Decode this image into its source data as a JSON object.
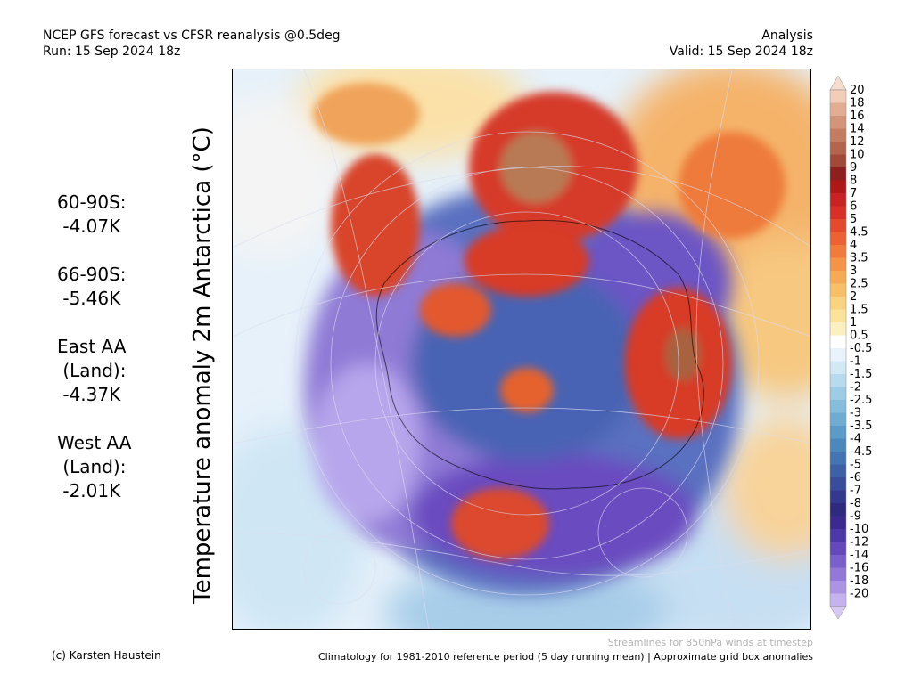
{
  "header": {
    "title_line1": "NCEP GFS forecast vs CFSR reanalysis @0.5deg",
    "title_line2": "Run: 15 Sep 2024 18z",
    "right_line1": "Analysis",
    "right_line2": "Valid: 15 Sep 2024 18z"
  },
  "map": {
    "ylabel": "Temperature anomaly 2m Antarctica (°C)"
  },
  "stats": [
    {
      "lines": [
        "60-90S:",
        " -4.07K"
      ]
    },
    {
      "lines": [
        "66-90S:",
        " -5.46K"
      ]
    },
    {
      "lines": [
        "East AA",
        " (Land):",
        " -4.37K"
      ]
    },
    {
      "lines": [
        "West AA",
        " (Land):",
        " -2.01K"
      ]
    }
  ],
  "colorbar": {
    "levels": [
      "20",
      "18",
      "16",
      "14",
      "12",
      "10",
      "9",
      "8",
      "7",
      "6",
      "5",
      "4.5",
      "4",
      "3.5",
      "3",
      "2.5",
      "2",
      "1.5",
      "1",
      "0.5",
      "-0.5",
      "-1",
      "-1.5",
      "-2",
      "-2.5",
      "-3",
      "-3.5",
      "-4",
      "-4.5",
      "-5",
      "-6",
      "-7",
      "-8",
      "-9",
      "-10",
      "-12",
      "-14",
      "-16",
      "-18",
      "-20"
    ],
    "colors": [
      "#f3cdb8",
      "#e2ad92",
      "#d3957a",
      "#c37d63",
      "#b3654d",
      "#a14a3a",
      "#8e1f1f",
      "#b01818",
      "#c82222",
      "#d83028",
      "#e34a2e",
      "#ec6234",
      "#f07b3d",
      "#f39449",
      "#f5aa56",
      "#f7c068",
      "#f9d37f",
      "#fbe39b",
      "#fdf0c0",
      "#ffffff",
      "#e8f3fb",
      "#d2e8f5",
      "#b8daee",
      "#9ecbe5",
      "#87bddc",
      "#70acd2",
      "#5c9bc8",
      "#4d88bd",
      "#4475b2",
      "#3e61a6",
      "#3a4d9a",
      "#35398d",
      "#302a7f",
      "#3d2a8e",
      "#4e37a6",
      "#6548ba",
      "#7b5fcb",
      "#9478d8",
      "#ad94e3",
      "#c6b2ee"
    ],
    "tip_top": "#f6dccd",
    "tip_bottom": "#d8c9f4"
  },
  "footer": {
    "credit": "(c) Karsten Haustein",
    "climatology": "Climatology for 1981-2010 reference period (5 day running mean) | Approximate grid box anomalies",
    "streamlines_note": "Streamlines for 850hPa winds at timestep"
  }
}
